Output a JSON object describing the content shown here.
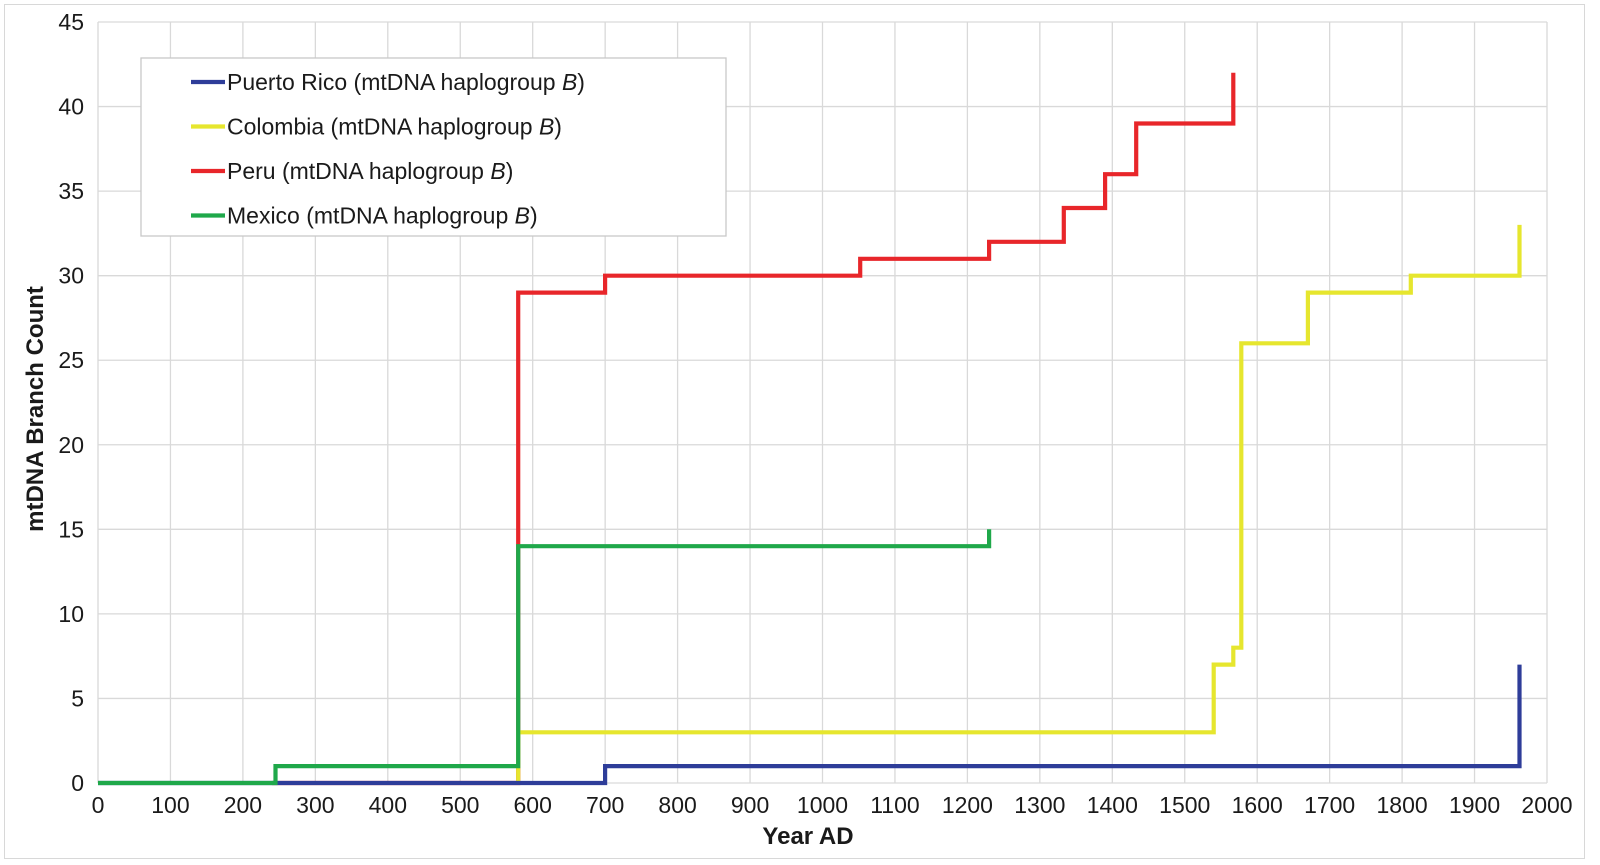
{
  "chart_data": {
    "type": "line",
    "step": true,
    "xlabel": "Year AD",
    "ylabel": "mtDNA Branch Count",
    "xlim": [
      0,
      2000
    ],
    "ylim": [
      0,
      45
    ],
    "xticks": [
      0,
      100,
      200,
      300,
      400,
      500,
      600,
      700,
      800,
      900,
      1000,
      1100,
      1200,
      1300,
      1400,
      1500,
      1600,
      1700,
      1800,
      1900,
      2000
    ],
    "yticks": [
      0,
      5,
      10,
      15,
      20,
      25,
      30,
      35,
      40,
      45
    ],
    "xtick_labels": [
      "0",
      "100",
      "200",
      "300",
      "400",
      "500",
      "600",
      "700",
      "800",
      "900",
      "1000",
      "1100",
      "1200",
      "1300",
      "1400",
      "1500",
      "1600",
      "1700",
      "1800",
      "1900",
      "2000"
    ],
    "ytick_labels": [
      "0",
      "5",
      "10",
      "15",
      "20",
      "25",
      "30",
      "35",
      "40",
      "45"
    ],
    "grid": true,
    "legend_position": "top-left",
    "series": [
      {
        "name": "Puerto Rico (mtDNA haplogroup B)",
        "legend_prefix": "Puerto Rico (mtDNA haplogroup ",
        "legend_italic": "B",
        "legend_suffix": ")",
        "color": "#2e3d99",
        "points": [
          [
            0,
            0
          ],
          [
            700,
            0
          ],
          [
            700,
            1
          ],
          [
            1962,
            1
          ],
          [
            1962,
            7
          ]
        ]
      },
      {
        "name": "Colombia (mtDNA haplogroup B)",
        "legend_prefix": "Colombia (mtDNA haplogroup ",
        "legend_italic": "B",
        "legend_suffix": ")",
        "color": "#e6e62e",
        "points": [
          [
            580,
            0
          ],
          [
            580,
            3
          ],
          [
            1540,
            3
          ],
          [
            1540,
            7
          ],
          [
            1567,
            7
          ],
          [
            1567,
            8
          ],
          [
            1578,
            8
          ],
          [
            1578,
            26
          ],
          [
            1670,
            26
          ],
          [
            1670,
            29
          ],
          [
            1812,
            29
          ],
          [
            1812,
            30
          ],
          [
            1962,
            30
          ],
          [
            1962,
            33
          ]
        ]
      },
      {
        "name": "Peru (mtDNA haplogroup B)",
        "legend_prefix": "Peru (mtDNA haplogroup ",
        "legend_italic": "B",
        "legend_suffix": ")",
        "color": "#e8262a",
        "points": [
          [
            240,
            0
          ],
          [
            580,
            0
          ],
          [
            580,
            29
          ],
          [
            700,
            29
          ],
          [
            700,
            30
          ],
          [
            1052,
            30
          ],
          [
            1052,
            31
          ],
          [
            1230,
            31
          ],
          [
            1230,
            32
          ],
          [
            1333,
            32
          ],
          [
            1333,
            34
          ],
          [
            1390,
            34
          ],
          [
            1390,
            36
          ],
          [
            1433,
            36
          ],
          [
            1433,
            39
          ],
          [
            1567,
            39
          ],
          [
            1567,
            42
          ]
        ]
      },
      {
        "name": "Mexico (mtDNA haplogroup B)",
        "legend_prefix": "Mexico (mtDNA haplogroup ",
        "legend_italic": "B",
        "legend_suffix": ")",
        "color": "#1fa84a",
        "points": [
          [
            0,
            0
          ],
          [
            245,
            0
          ],
          [
            245,
            1
          ],
          [
            580,
            1
          ],
          [
            580,
            14
          ],
          [
            1230,
            14
          ],
          [
            1230,
            15
          ]
        ]
      }
    ]
  }
}
